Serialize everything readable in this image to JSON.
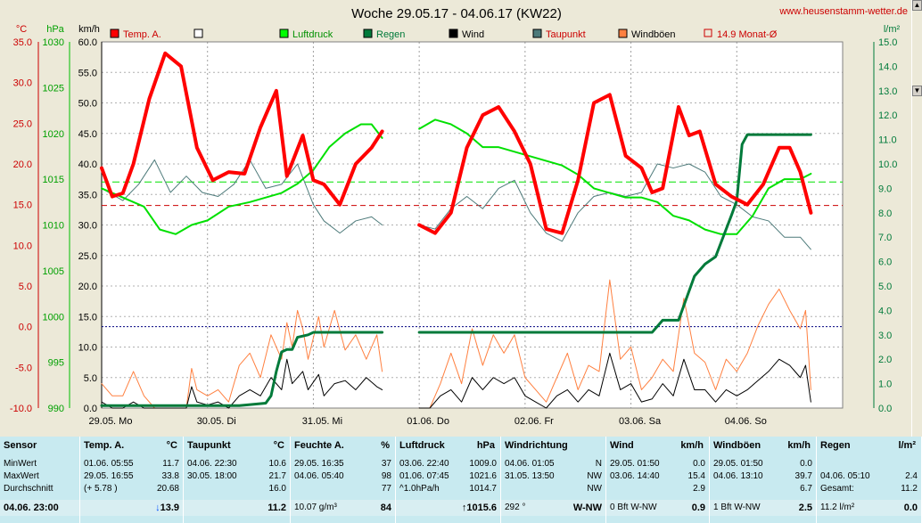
{
  "chart_data": {
    "type": "line",
    "title": "Woche 29.05.17 - 04.06.17 (KW22)",
    "watermark": "www.heusenstamm-wetter.de",
    "units_left": [
      "°C",
      "hPa",
      "km/h"
    ],
    "unit_right": "l/m²",
    "axis_temp": [
      "35.0",
      "30.0",
      "25.0",
      "20.0",
      "15.0",
      "10.0",
      "5.0",
      "0.0",
      "-5.0",
      "-10.0"
    ],
    "axis_pressure": [
      "1030",
      "1025",
      "1020",
      "1015",
      "1010",
      "1005",
      "1000",
      "995",
      "990"
    ],
    "axis_wind": [
      "60.0",
      "55.0",
      "50.0",
      "45.0",
      "40.0",
      "35.0",
      "30.0",
      "25.0",
      "20.0",
      "15.0",
      "10.0",
      "5.0",
      "0.0"
    ],
    "axis_rain": [
      "15.0",
      "14.0",
      "13.0",
      "12.0",
      "11.0",
      "10.0",
      "9.0",
      "8.0",
      "7.0",
      "6.0",
      "5.0",
      "4.0",
      "3.0",
      "2.0",
      "1.0",
      "0.0"
    ],
    "x_labels": [
      "29.05. Mo",
      "30.05. Di",
      "31.05. Mi",
      "01.06. Do",
      "02.06. Fr",
      "03.06. Sa",
      "04.06. So"
    ],
    "legend": [
      {
        "label": "Temp. A.",
        "color": "#ff0000",
        "style": "box"
      },
      {
        "label": "",
        "color": "#ffffff",
        "style": "box"
      },
      {
        "label": "Luftdruck",
        "color": "#00ff00",
        "style": "box"
      },
      {
        "label": "Regen",
        "color": "#007a3a",
        "style": "box"
      },
      {
        "label": "Wind",
        "color": "#000000",
        "style": "box"
      },
      {
        "label": "Taupunkt",
        "color": "#4d7a7a",
        "style": "box"
      },
      {
        "label": "Windböen",
        "color": "#ff8040",
        "style": "box"
      },
      {
        "label": "14.9 Monat-Ø",
        "color": "#cc0000",
        "style": "dashed"
      }
    ],
    "temp_ylim": [
      -10,
      35
    ],
    "pressure_ylim": [
      990,
      1030
    ],
    "wind_ylim": [
      0,
      60
    ],
    "rain_ylim": [
      0,
      15
    ],
    "reference_lines": {
      "temp_month_avg": 14.9,
      "pressure_ref": 1014.7,
      "temp_zero": 0
    },
    "gap": [
      2.7,
      3.0
    ],
    "temperature": [
      [
        0.0,
        19.5
      ],
      [
        0.1,
        16.0
      ],
      [
        0.2,
        16.4
      ],
      [
        0.3,
        20.0
      ],
      [
        0.45,
        28.0
      ],
      [
        0.6,
        33.6
      ],
      [
        0.75,
        32.0
      ],
      [
        0.9,
        22.0
      ],
      [
        1.05,
        18.0
      ],
      [
        1.2,
        19.0
      ],
      [
        1.35,
        18.8
      ],
      [
        1.5,
        24.5
      ],
      [
        1.65,
        29.0
      ],
      [
        1.75,
        18.5
      ],
      [
        1.9,
        23.5
      ],
      [
        2.0,
        18.0
      ],
      [
        2.1,
        17.5
      ],
      [
        2.25,
        15.0
      ],
      [
        2.4,
        20.0
      ],
      [
        2.55,
        22.0
      ],
      [
        2.65,
        24.0
      ],
      [
        3.0,
        12.5
      ],
      [
        3.15,
        11.5
      ],
      [
        3.3,
        14.0
      ],
      [
        3.45,
        22.0
      ],
      [
        3.6,
        26.0
      ],
      [
        3.75,
        27.0
      ],
      [
        3.9,
        24.0
      ],
      [
        4.05,
        20.0
      ],
      [
        4.2,
        12.0
      ],
      [
        4.35,
        11.5
      ],
      [
        4.5,
        18.0
      ],
      [
        4.65,
        27.5
      ],
      [
        4.8,
        28.5
      ],
      [
        4.95,
        21.0
      ],
      [
        5.1,
        19.5
      ],
      [
        5.2,
        16.5
      ],
      [
        5.3,
        17.0
      ],
      [
        5.45,
        27.0
      ],
      [
        5.55,
        23.5
      ],
      [
        5.65,
        24.0
      ],
      [
        5.8,
        17.5
      ],
      [
        5.95,
        16.0
      ],
      [
        6.1,
        15.0
      ],
      [
        6.25,
        17.5
      ],
      [
        6.4,
        22.0
      ],
      [
        6.5,
        22.0
      ],
      [
        6.6,
        19.0
      ],
      [
        6.7,
        14.0
      ]
    ],
    "dewpoint": [
      [
        0.0,
        17.0
      ],
      [
        0.2,
        15.5
      ],
      [
        0.35,
        17.5
      ],
      [
        0.5,
        20.5
      ],
      [
        0.65,
        16.5
      ],
      [
        0.8,
        18.5
      ],
      [
        0.95,
        16.5
      ],
      [
        1.1,
        16.0
      ],
      [
        1.25,
        17.5
      ],
      [
        1.4,
        20.5
      ],
      [
        1.55,
        17.0
      ],
      [
        1.7,
        17.5
      ],
      [
        1.85,
        20.0
      ],
      [
        2.0,
        15.0
      ],
      [
        2.1,
        13.0
      ],
      [
        2.25,
        11.5
      ],
      [
        2.4,
        13.0
      ],
      [
        2.55,
        13.5
      ],
      [
        2.65,
        12.5
      ],
      [
        3.0,
        12.5
      ],
      [
        3.15,
        12.0
      ],
      [
        3.3,
        14.5
      ],
      [
        3.45,
        16.0
      ],
      [
        3.6,
        14.5
      ],
      [
        3.75,
        17.0
      ],
      [
        3.9,
        18.0
      ],
      [
        4.05,
        14.0
      ],
      [
        4.2,
        11.5
      ],
      [
        4.35,
        10.5
      ],
      [
        4.5,
        14.0
      ],
      [
        4.65,
        16.0
      ],
      [
        4.8,
        16.5
      ],
      [
        4.95,
        16.0
      ],
      [
        5.1,
        16.5
      ],
      [
        5.25,
        20.0
      ],
      [
        5.4,
        19.5
      ],
      [
        5.55,
        20.0
      ],
      [
        5.7,
        19.0
      ],
      [
        5.85,
        16.0
      ],
      [
        6.0,
        15.0
      ],
      [
        6.15,
        13.5
      ],
      [
        6.3,
        13.0
      ],
      [
        6.45,
        11.0
      ],
      [
        6.6,
        11.0
      ],
      [
        6.7,
        9.5
      ]
    ],
    "pressure": [
      [
        0.0,
        1014.0
      ],
      [
        0.2,
        1013.0
      ],
      [
        0.4,
        1012.0
      ],
      [
        0.55,
        1009.5
      ],
      [
        0.7,
        1009.0
      ],
      [
        0.85,
        1010.0
      ],
      [
        1.0,
        1010.5
      ],
      [
        1.2,
        1012.0
      ],
      [
        1.4,
        1012.5
      ],
      [
        1.55,
        1013.0
      ],
      [
        1.7,
        1013.5
      ],
      [
        1.85,
        1014.5
      ],
      [
        2.0,
        1016.0
      ],
      [
        2.15,
        1018.5
      ],
      [
        2.3,
        1020.0
      ],
      [
        2.45,
        1021.0
      ],
      [
        2.55,
        1021.0
      ],
      [
        2.65,
        1019.5
      ],
      [
        3.0,
        1020.5
      ],
      [
        3.15,
        1021.5
      ],
      [
        3.3,
        1021.0
      ],
      [
        3.45,
        1020.0
      ],
      [
        3.6,
        1018.5
      ],
      [
        3.75,
        1018.5
      ],
      [
        3.9,
        1018.0
      ],
      [
        4.05,
        1017.5
      ],
      [
        4.2,
        1017.0
      ],
      [
        4.35,
        1016.5
      ],
      [
        4.5,
        1015.5
      ],
      [
        4.65,
        1014.0
      ],
      [
        4.8,
        1013.5
      ],
      [
        4.95,
        1013.0
      ],
      [
        5.1,
        1013.0
      ],
      [
        5.25,
        1012.5
      ],
      [
        5.4,
        1011.0
      ],
      [
        5.55,
        1010.5
      ],
      [
        5.7,
        1009.5
      ],
      [
        5.85,
        1009.0
      ],
      [
        6.0,
        1009.0
      ],
      [
        6.15,
        1011.0
      ],
      [
        6.3,
        1014.0
      ],
      [
        6.45,
        1015.0
      ],
      [
        6.6,
        1015.0
      ],
      [
        6.7,
        1015.6
      ]
    ],
    "wind": [
      [
        0.0,
        1.0
      ],
      [
        0.1,
        0.0
      ],
      [
        0.2,
        0.0
      ],
      [
        0.3,
        1.0
      ],
      [
        0.4,
        0.0
      ],
      [
        0.5,
        0.0
      ],
      [
        0.8,
        0.0
      ],
      [
        0.85,
        3.5
      ],
      [
        0.9,
        1.0
      ],
      [
        1.0,
        0.5
      ],
      [
        1.1,
        1.0
      ],
      [
        1.2,
        0.0
      ],
      [
        1.3,
        2.0
      ],
      [
        1.4,
        3.0
      ],
      [
        1.5,
        2.0
      ],
      [
        1.6,
        5.0
      ],
      [
        1.7,
        3.0
      ],
      [
        1.75,
        8.0
      ],
      [
        1.8,
        4.0
      ],
      [
        1.9,
        6.0
      ],
      [
        1.95,
        3.0
      ],
      [
        2.05,
        5.5
      ],
      [
        2.1,
        2.0
      ],
      [
        2.2,
        4.0
      ],
      [
        2.3,
        4.5
      ],
      [
        2.4,
        3.0
      ],
      [
        2.5,
        5.0
      ],
      [
        2.6,
        3.5
      ],
      [
        2.65,
        3.0
      ],
      [
        3.0,
        0.0
      ],
      [
        3.1,
        0.0
      ],
      [
        3.2,
        2.0
      ],
      [
        3.3,
        3.0
      ],
      [
        3.4,
        1.0
      ],
      [
        3.5,
        5.0
      ],
      [
        3.6,
        3.0
      ],
      [
        3.7,
        5.0
      ],
      [
        3.8,
        4.0
      ],
      [
        3.9,
        5.0
      ],
      [
        4.0,
        2.0
      ],
      [
        4.1,
        1.0
      ],
      [
        4.2,
        0.0
      ],
      [
        4.3,
        2.0
      ],
      [
        4.4,
        3.0
      ],
      [
        4.5,
        1.0
      ],
      [
        4.6,
        3.0
      ],
      [
        4.7,
        2.0
      ],
      [
        4.8,
        9.0
      ],
      [
        4.9,
        3.0
      ],
      [
        5.0,
        4.0
      ],
      [
        5.1,
        1.0
      ],
      [
        5.2,
        1.5
      ],
      [
        5.3,
        4.0
      ],
      [
        5.4,
        2.0
      ],
      [
        5.5,
        8.0
      ],
      [
        5.6,
        3.0
      ],
      [
        5.7,
        3.0
      ],
      [
        5.8,
        1.0
      ],
      [
        5.9,
        3.0
      ],
      [
        6.0,
        2.0
      ],
      [
        6.1,
        3.0
      ],
      [
        6.2,
        4.5
      ],
      [
        6.3,
        6.0
      ],
      [
        6.4,
        8.0
      ],
      [
        6.5,
        7.0
      ],
      [
        6.6,
        5.0
      ],
      [
        6.65,
        7.0
      ],
      [
        6.7,
        1.0
      ]
    ],
    "gusts": [
      [
        0.0,
        4.0
      ],
      [
        0.1,
        2.0
      ],
      [
        0.2,
        2.0
      ],
      [
        0.3,
        6.0
      ],
      [
        0.4,
        2.0
      ],
      [
        0.5,
        0.0
      ],
      [
        0.8,
        0.0
      ],
      [
        0.85,
        6.5
      ],
      [
        0.9,
        3.0
      ],
      [
        1.0,
        2.0
      ],
      [
        1.1,
        3.0
      ],
      [
        1.2,
        1.0
      ],
      [
        1.3,
        7.0
      ],
      [
        1.4,
        9.0
      ],
      [
        1.5,
        5.0
      ],
      [
        1.6,
        12.0
      ],
      [
        1.7,
        8.0
      ],
      [
        1.75,
        14.0
      ],
      [
        1.8,
        10.0
      ],
      [
        1.85,
        16.0
      ],
      [
        1.9,
        13.0
      ],
      [
        1.95,
        8.0
      ],
      [
        2.05,
        15.0
      ],
      [
        2.1,
        10.0
      ],
      [
        2.2,
        16.0
      ],
      [
        2.3,
        9.5
      ],
      [
        2.4,
        12.0
      ],
      [
        2.5,
        8.0
      ],
      [
        2.6,
        12.0
      ],
      [
        2.65,
        6.0
      ],
      [
        3.0,
        0.0
      ],
      [
        3.1,
        0.0
      ],
      [
        3.2,
        4.0
      ],
      [
        3.3,
        9.0
      ],
      [
        3.4,
        4.0
      ],
      [
        3.5,
        13.0
      ],
      [
        3.6,
        7.0
      ],
      [
        3.7,
        12.0
      ],
      [
        3.8,
        9.0
      ],
      [
        3.9,
        12.0
      ],
      [
        4.0,
        5.0
      ],
      [
        4.1,
        3.0
      ],
      [
        4.2,
        1.0
      ],
      [
        4.3,
        5.0
      ],
      [
        4.4,
        9.0
      ],
      [
        4.5,
        3.0
      ],
      [
        4.6,
        7.0
      ],
      [
        4.7,
        6.0
      ],
      [
        4.8,
        21.0
      ],
      [
        4.9,
        8.0
      ],
      [
        5.0,
        10.0
      ],
      [
        5.1,
        3.0
      ],
      [
        5.2,
        5.0
      ],
      [
        5.3,
        8.0
      ],
      [
        5.4,
        6.0
      ],
      [
        5.5,
        18.0
      ],
      [
        5.6,
        9.0
      ],
      [
        5.7,
        7.5
      ],
      [
        5.8,
        3.0
      ],
      [
        5.9,
        8.0
      ],
      [
        6.0,
        6.0
      ],
      [
        6.1,
        9.0
      ],
      [
        6.2,
        13.5
      ],
      [
        6.3,
        17.0
      ],
      [
        6.4,
        19.5
      ],
      [
        6.5,
        16.0
      ],
      [
        6.6,
        13.0
      ],
      [
        6.65,
        16.0
      ],
      [
        6.7,
        3.0
      ]
    ],
    "rain": [
      [
        0.0,
        0.1
      ],
      [
        0.3,
        0.1
      ],
      [
        0.6,
        0.1
      ],
      [
        0.8,
        0.1
      ],
      [
        1.0,
        0.1
      ],
      [
        1.3,
        0.1
      ],
      [
        1.55,
        0.2
      ],
      [
        1.6,
        0.5
      ],
      [
        1.65,
        1.5
      ],
      [
        1.7,
        2.3
      ],
      [
        1.75,
        2.4
      ],
      [
        1.8,
        2.4
      ],
      [
        1.85,
        2.9
      ],
      [
        1.95,
        3.0
      ],
      [
        2.0,
        3.1
      ],
      [
        2.65,
        3.1
      ],
      [
        3.0,
        3.1
      ],
      [
        4.0,
        3.1
      ],
      [
        5.0,
        3.1
      ],
      [
        5.2,
        3.1
      ],
      [
        5.3,
        3.6
      ],
      [
        5.45,
        3.6
      ],
      [
        5.6,
        5.4
      ],
      [
        5.7,
        5.9
      ],
      [
        5.8,
        6.2
      ],
      [
        5.95,
        7.9
      ],
      [
        6.0,
        8.5
      ],
      [
        6.05,
        10.8
      ],
      [
        6.1,
        11.2
      ],
      [
        6.7,
        11.2
      ]
    ]
  },
  "table": {
    "columns": [
      {
        "title": "Sensor",
        "unit": "",
        "rows": [
          [
            "MinWert",
            "",
            ""
          ],
          [
            "MaxWert",
            "",
            ""
          ],
          [
            "Durchschnitt",
            "",
            ""
          ]
        ],
        "foot": [
          "04.06. 23:00",
          "",
          ""
        ]
      },
      {
        "title": "Temp. A.",
        "unit": "°C",
        "rows": [
          [
            "01.06. 05:55",
            "",
            "11.7"
          ],
          [
            "29.05. 16:55",
            "",
            "33.8"
          ],
          [
            "(+ 5.78 )",
            "",
            "20.68"
          ]
        ],
        "foot": [
          "",
          "↓13.9",
          ""
        ]
      },
      {
        "title": "Taupunkt",
        "unit": "°C",
        "rows": [
          [
            "04.06. 22:30",
            "",
            "10.6"
          ],
          [
            "30.05. 18:00",
            "",
            "21.7"
          ],
          [
            "",
            "",
            "16.0"
          ]
        ],
        "foot": [
          "",
          "",
          "11.2"
        ]
      },
      {
        "title": "Feuchte A.",
        "unit": "%",
        "rows": [
          [
            "29.05. 16:35",
            "",
            "37"
          ],
          [
            "04.06. 05:40",
            "",
            "98"
          ],
          [
            "",
            "",
            "77"
          ]
        ],
        "foot": [
          "10.07 g/m³",
          "",
          "84"
        ]
      },
      {
        "title": "Luftdruck",
        "unit": "hPa",
        "rows": [
          [
            "03.06. 22:40",
            "",
            "1009.0"
          ],
          [
            "01.06. 07:45",
            "",
            "1021.6"
          ],
          [
            "^1.0hPa/h",
            "",
            "1014.7"
          ]
        ],
        "foot": [
          "",
          "↑1015.6",
          ""
        ]
      },
      {
        "title": "Windrichtung",
        "unit": "",
        "rows": [
          [
            "04.06. 01:05",
            "",
            "N"
          ],
          [
            "31.05. 13:50",
            "",
            "NW"
          ],
          [
            "",
            "",
            "NW"
          ]
        ],
        "foot": [
          "292 °",
          "",
          "W-NW"
        ]
      },
      {
        "title": "Wind",
        "unit": "km/h",
        "rows": [
          [
            "29.05. 01:50",
            "",
            "0.0"
          ],
          [
            "03.06. 14:40",
            "",
            "15.4"
          ],
          [
            "",
            "",
            "2.9"
          ]
        ],
        "foot": [
          "0 Bft W-NW",
          "",
          "0.9"
        ]
      },
      {
        "title": "Windböen",
        "unit": "km/h",
        "rows": [
          [
            "29.05. 01:50",
            "",
            "0.0"
          ],
          [
            "04.06. 13:10",
            "",
            "39.7"
          ],
          [
            "",
            "",
            "6.7"
          ]
        ],
        "foot": [
          "1 Bft W-NW",
          "",
          "2.5"
        ]
      },
      {
        "title": "Regen",
        "unit": "l/m²",
        "rows": [
          [
            "",
            "",
            ""
          ],
          [
            "04.06. 05:10",
            "",
            "2.4"
          ],
          [
            "Gesamt:",
            "",
            "11.2"
          ]
        ],
        "foot": [
          "11.2 l/m²",
          "",
          "0.0"
        ]
      }
    ]
  }
}
